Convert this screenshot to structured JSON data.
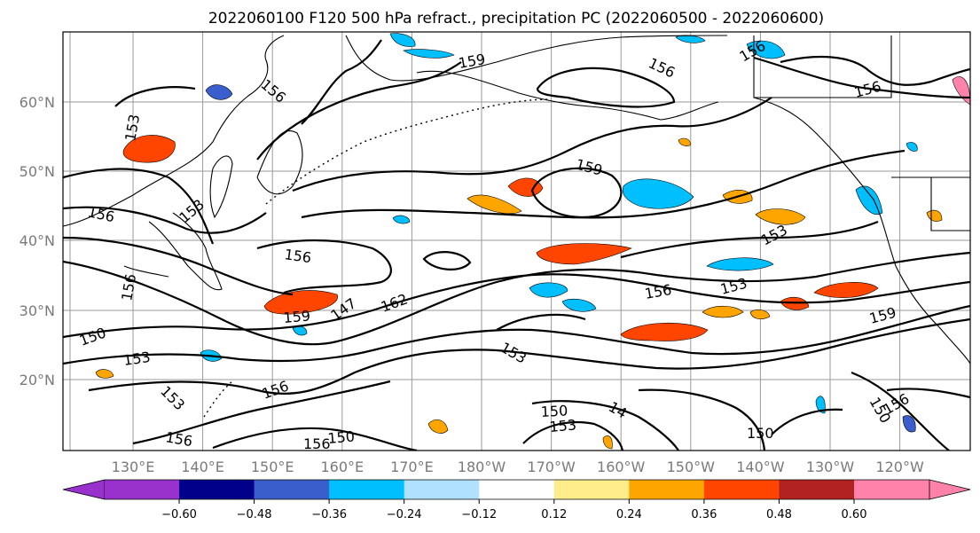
{
  "title": "2022060100 F120 500 hPa refract., precipitation PC (2022060500 - 2022060600)",
  "lat_labels": [
    "20°N",
    "30°N",
    "40°N",
    "50°N",
    "60°N"
  ],
  "lon_labels": [
    "130°E",
    "140°E",
    "150°E",
    "160°E",
    "170°E",
    "180°W",
    "170°W",
    "160°W",
    "150°W",
    "140°W",
    "130°W",
    "120°W"
  ],
  "colorbar": {
    "ticks": [
      "−0.60",
      "−0.48",
      "−0.36",
      "−0.24",
      "−0.12",
      "0.12",
      "0.24",
      "0.36",
      "0.48",
      "0.60"
    ],
    "colors": [
      "#9932cc",
      "#00008b",
      "#3a5fcd",
      "#00bfff",
      "#b0e2ff",
      "#ffffff",
      "#ffec8b",
      "#ffa500",
      "#ff4500",
      "#b22222",
      "#ff82ab"
    ]
  },
  "contour_labels": [
    "156",
    "159",
    "156",
    "156",
    "153",
    "156",
    "156",
    "159",
    "153",
    "153",
    "156",
    "156",
    "153",
    "156",
    "159",
    "147",
    "162",
    "159",
    "150",
    "153",
    "153",
    "153",
    "156",
    "150",
    "150",
    "14",
    "150",
    "156",
    "156",
    "153"
  ]
}
